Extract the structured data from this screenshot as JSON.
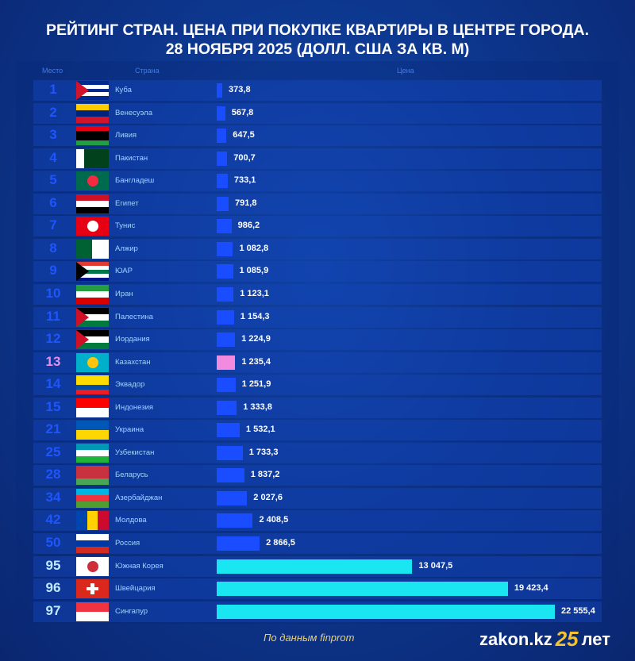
{
  "title_line1": "РЕЙТИНГ СТРАН. ЦЕНА ПРИ ПОКУПКЕ КВАРТИРЫ В ЦЕНТРЕ ГОРОДА.",
  "title_line2": "28 НОЯБРЯ 2025 (ДОЛЛ. США ЗА КВ. М)",
  "headers": {
    "rank": "Место",
    "country": "Страна",
    "price": "Цена"
  },
  "source": "По данным finprom",
  "logo": {
    "text": "zakon.kz",
    "number": "25",
    "suffix": "лет"
  },
  "colors": {
    "default_bar": "#1a4dff",
    "highlight_bar": "#f28be0",
    "top_bar": "#19e6f0",
    "rank": "#1f55ff",
    "highlight_rank": "#e98be8"
  },
  "chart_data": {
    "type": "bar",
    "orientation": "horizontal",
    "title": "РЕЙТИНГ СТРАН. ЦЕНА ПРИ ПОКУПКЕ КВАРТИРЫ В ЦЕНТРЕ ГОРОДА. 28 НОЯБРЯ 2025 (ДОЛЛ. США ЗА КВ. М)",
    "xlim": [
      0,
      22555.4
    ],
    "grid": false,
    "rows": [
      {
        "rank": "1",
        "country": "Куба",
        "value": 373.8,
        "label": "373,8",
        "flag": [
          "#002a8f",
          "#fff",
          "#002a8f",
          "#fff",
          "#002a8f"
        ],
        "hoist": "#cf142b"
      },
      {
        "rank": "2",
        "country": "Венесуэла",
        "value": 567.8,
        "label": "567,8",
        "flag": [
          "#ffcc00",
          "#00247d",
          "#cf142b"
        ]
      },
      {
        "rank": "3",
        "country": "Ливия",
        "value": 647.5,
        "label": "647,5",
        "flag": [
          "#e70013",
          "#000",
          "#000",
          "#239e46"
        ]
      },
      {
        "rank": "4",
        "country": "Пакистан",
        "value": 700.7,
        "label": "700,7",
        "flag": [
          "#01411c"
        ],
        "side": "#fff"
      },
      {
        "rank": "5",
        "country": "Бангладеш",
        "value": 733.1,
        "label": "733,1",
        "flag": [
          "#006a4e"
        ],
        "dot": "#f42a41"
      },
      {
        "rank": "6",
        "country": "Египет",
        "value": 791.8,
        "label": "791,8",
        "flag": [
          "#ce1126",
          "#fff",
          "#000"
        ]
      },
      {
        "rank": "7",
        "country": "Тунис",
        "value": 986.2,
        "label": "986,2",
        "flag": [
          "#e70013"
        ],
        "dot": "#fff"
      },
      {
        "rank": "8",
        "country": "Алжир",
        "value": 1082.8,
        "label": "1 082,8",
        "flag": [
          "#fff"
        ],
        "side": "#006233",
        "half": true
      },
      {
        "rank": "9",
        "country": "ЮАР",
        "value": 1085.9,
        "label": "1 085,9",
        "flag": [
          "#e03c31",
          "#fff",
          "#007749",
          "#fff",
          "#001489"
        ],
        "hoist": "#000"
      },
      {
        "rank": "10",
        "country": "Иран",
        "value": 1123.1,
        "label": "1 123,1",
        "flag": [
          "#239f40",
          "#fff",
          "#da0000"
        ]
      },
      {
        "rank": "11",
        "country": "Палестина",
        "value": 1154.3,
        "label": "1 154,3",
        "flag": [
          "#000",
          "#fff",
          "#007a3d"
        ],
        "hoist": "#ce1126"
      },
      {
        "rank": "12",
        "country": "Иордания",
        "value": 1224.9,
        "label": "1 224,9",
        "flag": [
          "#000",
          "#fff",
          "#007a3d"
        ],
        "hoist": "#ce1126"
      },
      {
        "rank": "13",
        "country": "Казахстан",
        "value": 1235.4,
        "label": "1 235,4",
        "flag": [
          "#00afca"
        ],
        "dot": "#fec50c",
        "highlight": true
      },
      {
        "rank": "14",
        "country": "Эквадор",
        "value": 1251.9,
        "label": "1 251,9",
        "flag": [
          "#ffdd00",
          "#ffdd00",
          "#034ea2",
          "#ed1c24"
        ]
      },
      {
        "rank": "15",
        "country": "Индонезия",
        "value": 1333.8,
        "label": "1 333,8",
        "flag": [
          "#ff0000",
          "#fff"
        ]
      },
      {
        "rank": "21",
        "country": "Украина",
        "value": 1532.1,
        "label": "1 532,1",
        "flag": [
          "#0057b7",
          "#ffd700"
        ]
      },
      {
        "rank": "25",
        "country": "Узбекистан",
        "value": 1733.3,
        "label": "1 733,3",
        "flag": [
          "#0099b5",
          "#fff",
          "#1eb53a"
        ]
      },
      {
        "rank": "28",
        "country": "Беларусь",
        "value": 1837.2,
        "label": "1 837,2",
        "flag": [
          "#c8313e",
          "#c8313e",
          "#4aa657"
        ]
      },
      {
        "rank": "34",
        "country": "Азербайджан",
        "value": 2027.6,
        "label": "2 027,6",
        "flag": [
          "#00b5e2",
          "#ef3340",
          "#509e2f"
        ]
      },
      {
        "rank": "42",
        "country": "Молдова",
        "value": 2408.5,
        "label": "2 408,5",
        "vflag": [
          "#0046ae",
          "#ffd200",
          "#cc092f"
        ]
      },
      {
        "rank": "50",
        "country": "Россия",
        "value": 2866.5,
        "label": "2 866,5",
        "flag": [
          "#fff",
          "#0039a6",
          "#d52b1e"
        ]
      },
      {
        "rank": "95",
        "country": "Южная Корея",
        "value": 13047.5,
        "label": "13 047,5",
        "flag": [
          "#fff"
        ],
        "dot": "#cd2e3a",
        "top": true
      },
      {
        "rank": "96",
        "country": "Швейцария",
        "value": 19423.4,
        "label": "19 423,4",
        "flag": [
          "#da291c"
        ],
        "cross": "#fff",
        "top": true
      },
      {
        "rank": "97",
        "country": "Сингапур",
        "value": 22555.4,
        "label": "22 555,4",
        "flag": [
          "#ef3340",
          "#fff"
        ],
        "top": true
      }
    ]
  }
}
